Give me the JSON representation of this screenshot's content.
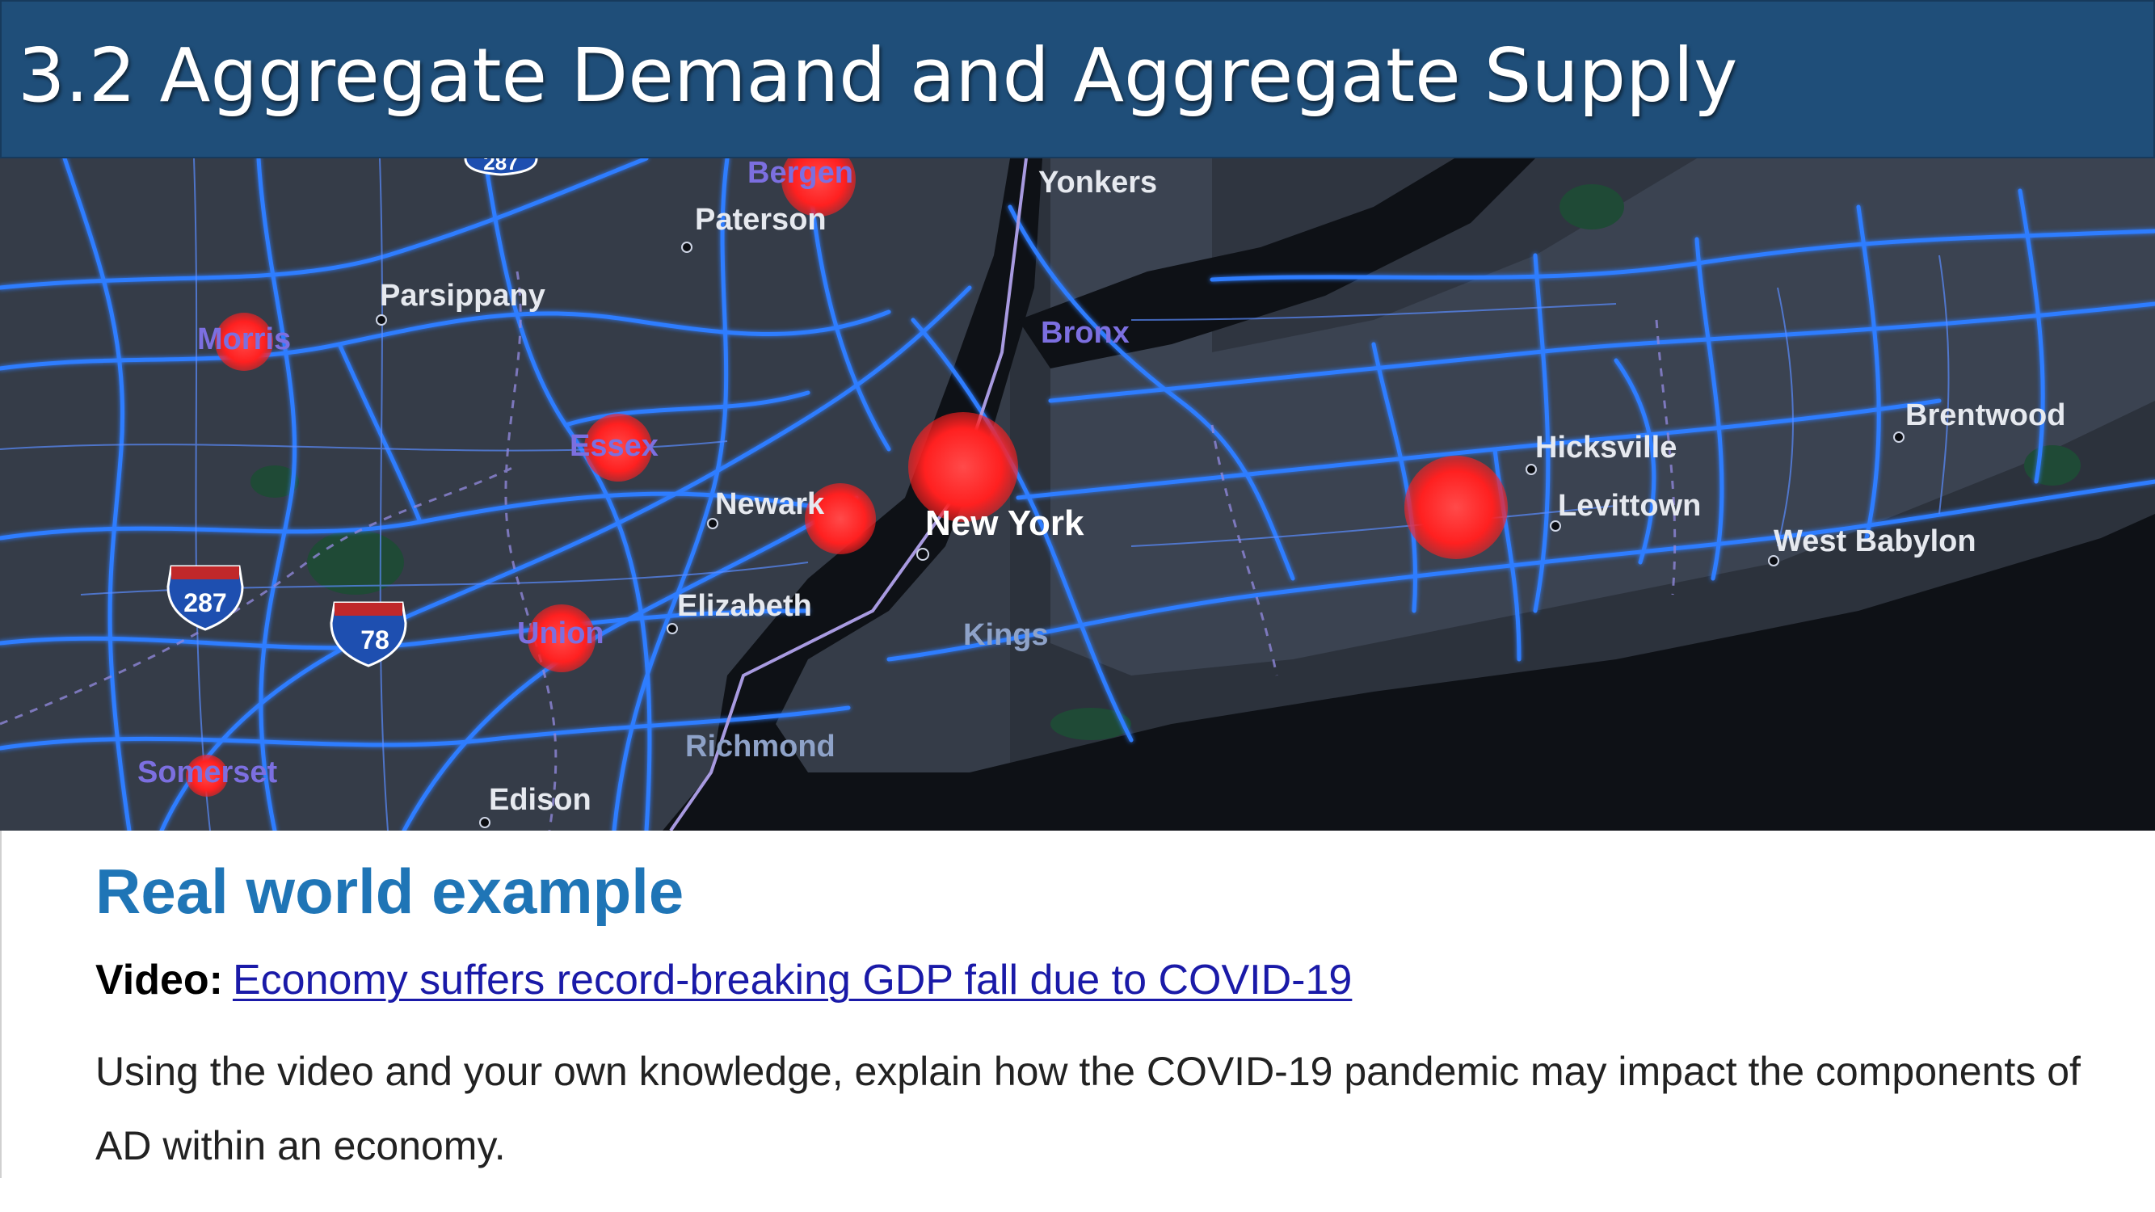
{
  "slide": {
    "title": "3.2 Aggregate Demand and Aggregate Supply"
  },
  "map": {
    "labels": {
      "bergen": "Bergen",
      "yonkers": "Yonkers",
      "paterson": "Paterson",
      "parsippany": "Parsippany",
      "morris": "Morris",
      "bronx": "Bronx",
      "essex": "Essex",
      "newark": "Newark",
      "new_york": "New York",
      "elizabeth": "Elizabeth",
      "kings": "Kings",
      "union": "Union",
      "richmond": "Richmond",
      "somerset": "Somerset",
      "edison": "Edison",
      "hicksville": "Hicksville",
      "levittown": "Levittown",
      "brentwood": "Brentwood",
      "west_babylon": "West Babylon"
    },
    "shields": {
      "i287": "287",
      "i78": "78",
      "top": "287"
    },
    "colors": {
      "land": "#3a4150",
      "water": "#0d0f14",
      "road": "#2f7dff",
      "hotspot": "#ff2b2b"
    }
  },
  "content": {
    "heading": "Real world example",
    "video_label": "Video:",
    "video_link": "Economy suffers record-breaking GDP fall due to COVID-19",
    "paragraph": "Using the video and your own knowledge, explain how the COVID-19 pandemic may impact the components of AD within an economy."
  }
}
